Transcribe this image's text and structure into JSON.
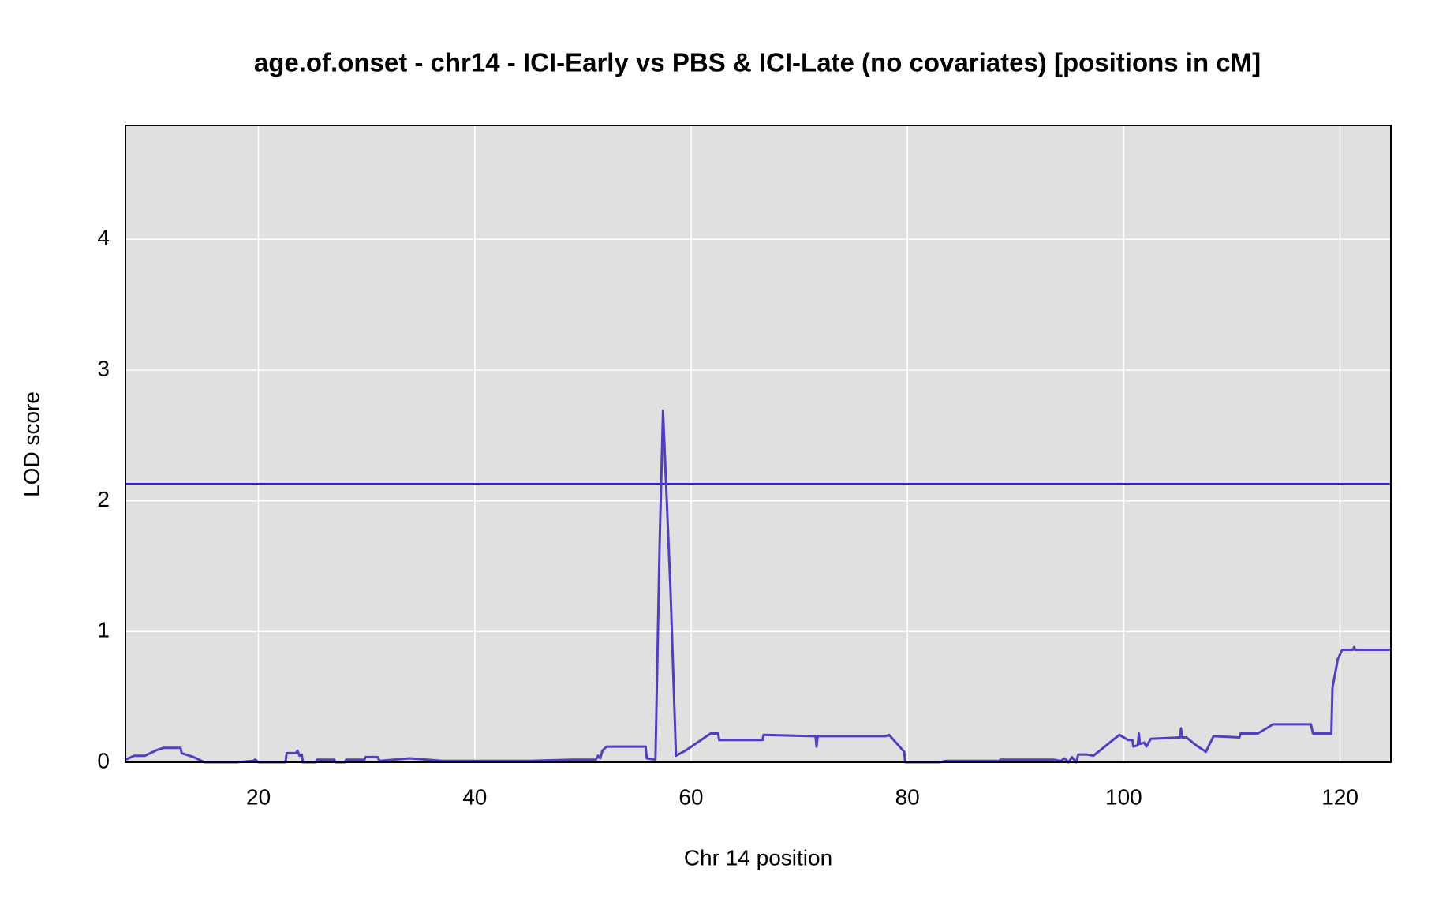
{
  "chart_data": {
    "type": "line",
    "title": "age.of.onset - chr14 - ICI-Early vs PBS & ICI-Late (no covariates) [positions in cM]",
    "x_label": "Chr 14 position",
    "y_label": "LOD score",
    "x": [
      7.7,
      8.5,
      9.5,
      10.5,
      11.2,
      12.8,
      12.9,
      14,
      15,
      18,
      19.5,
      19.7,
      20,
      22.5,
      22.6,
      23.5,
      23.6,
      23.8,
      24,
      24.1,
      25.3,
      25.4,
      27,
      27.1,
      28,
      28.1,
      29.8,
      29.9,
      31,
      31.2,
      34,
      37,
      41,
      43,
      45,
      49,
      51.2,
      51.4,
      51.6,
      51.8,
      52.2,
      55.8,
      55.9,
      56.7,
      57.1,
      57.4,
      58.1,
      58.6,
      59.5,
      61.8,
      62.5,
      62.6,
      66.6,
      66.7,
      71.5,
      71.6,
      71.7,
      78,
      78.3,
      79.7,
      79.8,
      83,
      83.5,
      86,
      88.5,
      88.6,
      93.5,
      94.2,
      94.5,
      94.9,
      95.2,
      95.6,
      95.8,
      96.6,
      97.2,
      99.6,
      100.4,
      100.8,
      100.9,
      101.3,
      101.4,
      101.5,
      101.9,
      102.1,
      102.5,
      105.2,
      105.3,
      105.4,
      105.8,
      106.7,
      107.6,
      108.3,
      110.7,
      110.8,
      112.4,
      113.8,
      117.3,
      117.5,
      119.2,
      119.3,
      119.8,
      120.2,
      121.2,
      121.3,
      121.4,
      124.7
    ],
    "values": [
      0.02,
      0.05,
      0.05,
      0.09,
      0.11,
      0.11,
      0.07,
      0.04,
      0.0,
      0.0,
      0.01,
      0.02,
      0.0,
      0.0,
      0.07,
      0.07,
      0.09,
      0.05,
      0.06,
      0.0,
      0.0,
      0.02,
      0.02,
      0.0,
      0.0,
      0.02,
      0.02,
      0.04,
      0.04,
      0.01,
      0.03,
      0.01,
      0.01,
      0.01,
      0.01,
      0.02,
      0.02,
      0.05,
      0.03,
      0.09,
      0.12,
      0.12,
      0.03,
      0.02,
      1.7,
      2.69,
      1.3,
      0.05,
      0.09,
      0.22,
      0.22,
      0.17,
      0.17,
      0.21,
      0.2,
      0.12,
      0.2,
      0.2,
      0.21,
      0.08,
      0.0,
      0.0,
      0.01,
      0.01,
      0.01,
      0.02,
      0.02,
      0.01,
      0.03,
      0.0,
      0.04,
      0.0,
      0.06,
      0.06,
      0.05,
      0.21,
      0.17,
      0.17,
      0.12,
      0.13,
      0.22,
      0.14,
      0.15,
      0.12,
      0.18,
      0.19,
      0.26,
      0.19,
      0.19,
      0.13,
      0.08,
      0.2,
      0.19,
      0.22,
      0.22,
      0.29,
      0.29,
      0.22,
      0.22,
      0.57,
      0.79,
      0.86,
      0.86,
      0.88,
      0.86,
      0.86
    ],
    "color": "#5040c0",
    "threshold": 2.13,
    "threshold_color": "#3020e0",
    "xlim": [
      7.7,
      124.7
    ],
    "ylim": [
      0,
      4.87
    ],
    "xticks": [
      20,
      40,
      60,
      80,
      100,
      120
    ],
    "yticks": [
      0,
      1,
      2,
      3,
      4
    ],
    "grid": true
  }
}
